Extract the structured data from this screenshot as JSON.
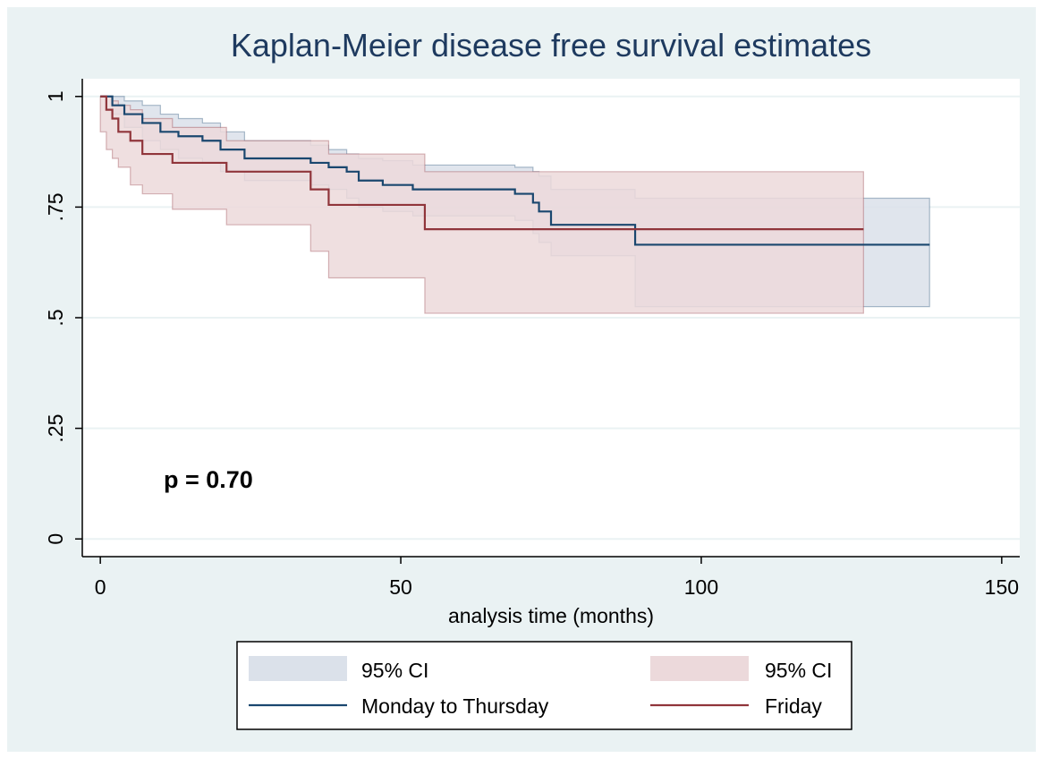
{
  "chart_data": {
    "type": "survival",
    "title": "Kaplan-Meier disease free survival estimates",
    "x_label": "analysis time (months)",
    "annotation": "p = 0.70",
    "xlim": [
      -3,
      153
    ],
    "xticks": [
      0,
      50,
      100,
      150
    ],
    "ylim": [
      -0.04,
      1.04
    ],
    "yticks": [
      0,
      {
        "value": 0.25,
        "label": ".25"
      },
      {
        "value": 0.5,
        "label": ".5"
      },
      {
        "value": 0.75,
        "label": ".75"
      },
      1
    ],
    "grid": true,
    "series": [
      {
        "name": "Monday to Thursday",
        "ci_label": "95% CI",
        "color": "#1a476f",
        "ci_color": "#dbe1ea",
        "x": [
          0,
          2,
          4,
          7,
          10,
          13,
          17,
          20,
          24,
          35,
          38,
          41,
          43,
          47,
          52,
          69,
          72,
          73,
          75,
          89,
          138
        ],
        "values": [
          1,
          0.98,
          0.96,
          0.94,
          0.92,
          0.91,
          0.9,
          0.88,
          0.86,
          0.85,
          0.84,
          0.83,
          0.81,
          0.8,
          0.79,
          0.78,
          0.76,
          0.74,
          0.71,
          0.665,
          0.665
        ],
        "upper": [
          1,
          1,
          0.99,
          0.98,
          0.96,
          0.95,
          0.94,
          0.92,
          0.9,
          0.89,
          0.88,
          0.87,
          0.86,
          0.855,
          0.845,
          0.84,
          0.83,
          0.82,
          0.79,
          0.77,
          0.77
        ],
        "lower": [
          1,
          0.96,
          0.93,
          0.9,
          0.88,
          0.86,
          0.85,
          0.83,
          0.81,
          0.8,
          0.79,
          0.77,
          0.75,
          0.74,
          0.73,
          0.72,
          0.69,
          0.67,
          0.64,
          0.525,
          0.525
        ]
      },
      {
        "name": "Friday",
        "ci_label": "95% CI",
        "color": "#90353b",
        "ci_color": "#ecd9db",
        "x": [
          0,
          1,
          2,
          3,
          5,
          7,
          12,
          21,
          35,
          38,
          54,
          127
        ],
        "values": [
          1,
          0.97,
          0.95,
          0.92,
          0.9,
          0.87,
          0.85,
          0.83,
          0.79,
          0.755,
          0.7,
          0.7
        ],
        "upper": [
          1,
          1,
          0.99,
          0.98,
          0.97,
          0.95,
          0.93,
          0.9,
          0.9,
          0.87,
          0.83,
          0.83
        ],
        "lower": [
          0.92,
          0.88,
          0.86,
          0.84,
          0.8,
          0.78,
          0.745,
          0.71,
          0.65,
          0.59,
          0.51,
          0.51
        ]
      }
    ]
  }
}
